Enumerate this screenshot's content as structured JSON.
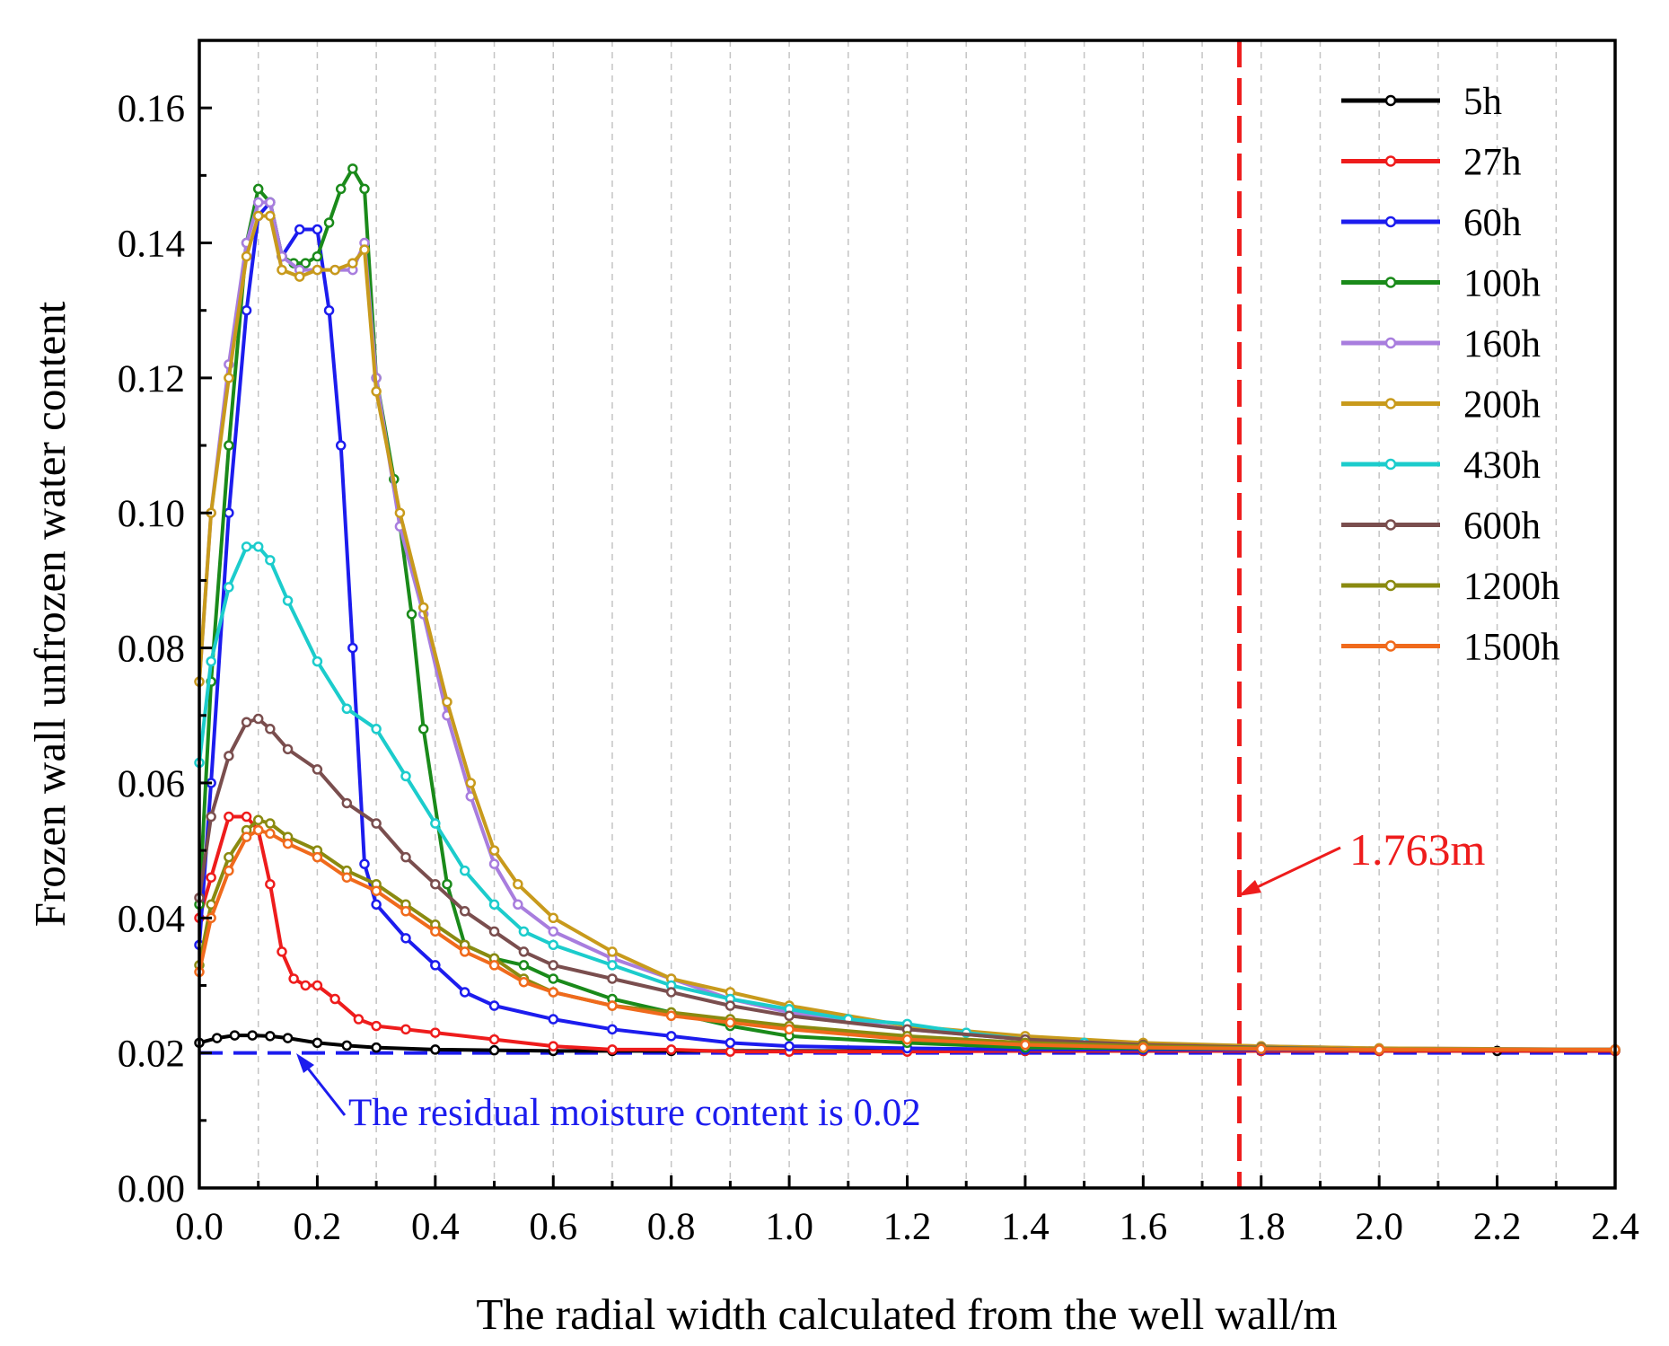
{
  "chart_data": {
    "type": "line",
    "xlabel": "The radial width calculated from the well wall/m",
    "ylabel": "Frozen wall unfrozen water content",
    "xlim": [
      0.0,
      2.4
    ],
    "ylim": [
      0.0,
      0.17
    ],
    "x_ticks": [
      "0.0",
      "0.2",
      "0.4",
      "0.6",
      "0.8",
      "1.0",
      "1.2",
      "1.4",
      "1.6",
      "1.8",
      "2.0",
      "2.2",
      "2.4"
    ],
    "y_ticks": [
      "0.00",
      "0.02",
      "0.04",
      "0.06",
      "0.08",
      "0.10",
      "0.12",
      "0.14",
      "0.16"
    ],
    "grid": "vertical dashed every 0.1",
    "legend_position": "top-right",
    "series": [
      {
        "name": "5h",
        "color": "#000000",
        "x": [
          0,
          0.03,
          0.06,
          0.09,
          0.12,
          0.15,
          0.2,
          0.25,
          0.3,
          0.4,
          0.5,
          0.6,
          0.7,
          0.8,
          1.0,
          1.2,
          1.4,
          1.6,
          1.8,
          2.0,
          2.2,
          2.4
        ],
        "y": [
          0.0215,
          0.0222,
          0.0226,
          0.0226,
          0.0225,
          0.0222,
          0.0215,
          0.0211,
          0.0208,
          0.0205,
          0.0204,
          0.0203,
          0.0203,
          0.0203,
          0.0203,
          0.0203,
          0.0203,
          0.0203,
          0.0203,
          0.0203,
          0.0203,
          0.0203
        ]
      },
      {
        "name": "27h",
        "color": "#ee1c1c",
        "x": [
          0,
          0.02,
          0.05,
          0.08,
          0.1,
          0.12,
          0.14,
          0.16,
          0.18,
          0.2,
          0.23,
          0.27,
          0.3,
          0.35,
          0.4,
          0.5,
          0.6,
          0.7,
          0.8,
          0.9,
          1.0,
          1.2,
          1.4,
          1.6,
          1.8,
          2.0,
          2.4
        ],
        "y": [
          0.04,
          0.046,
          0.055,
          0.055,
          0.053,
          0.045,
          0.035,
          0.031,
          0.03,
          0.03,
          0.028,
          0.025,
          0.024,
          0.0235,
          0.023,
          0.022,
          0.021,
          0.0205,
          0.0205,
          0.0202,
          0.0202,
          0.0202,
          0.0203,
          0.0203,
          0.0203,
          0.0203,
          0.0203
        ]
      },
      {
        "name": "60h",
        "color": "#1c1cee",
        "x": [
          0,
          0.02,
          0.05,
          0.08,
          0.1,
          0.12,
          0.14,
          0.17,
          0.2,
          0.22,
          0.24,
          0.26,
          0.28,
          0.3,
          0.35,
          0.4,
          0.45,
          0.5,
          0.6,
          0.7,
          0.8,
          0.9,
          1.0,
          1.2,
          1.4,
          1.6,
          1.8,
          2.0,
          2.4
        ],
        "y": [
          0.036,
          0.06,
          0.1,
          0.13,
          0.144,
          0.146,
          0.138,
          0.142,
          0.142,
          0.13,
          0.11,
          0.08,
          0.048,
          0.042,
          0.037,
          0.033,
          0.029,
          0.027,
          0.025,
          0.0235,
          0.0225,
          0.0215,
          0.021,
          0.0207,
          0.0205,
          0.0205,
          0.0205,
          0.0205,
          0.0205
        ]
      },
      {
        "name": "100h",
        "color": "#1a8a1a",
        "x": [
          0,
          0.02,
          0.05,
          0.08,
          0.1,
          0.12,
          0.14,
          0.16,
          0.18,
          0.2,
          0.22,
          0.24,
          0.26,
          0.28,
          0.3,
          0.33,
          0.36,
          0.38,
          0.42,
          0.45,
          0.5,
          0.55,
          0.6,
          0.7,
          0.8,
          0.9,
          1.0,
          1.2,
          1.4,
          1.6,
          1.8,
          2.0,
          2.4
        ],
        "y": [
          0.042,
          0.075,
          0.11,
          0.14,
          0.148,
          0.146,
          0.138,
          0.137,
          0.137,
          0.138,
          0.143,
          0.148,
          0.151,
          0.148,
          0.12,
          0.105,
          0.085,
          0.068,
          0.045,
          0.036,
          0.034,
          0.033,
          0.031,
          0.028,
          0.026,
          0.024,
          0.0225,
          0.0215,
          0.0208,
          0.0207,
          0.0206,
          0.0205,
          0.0205
        ]
      },
      {
        "name": "160h",
        "color": "#a87dde",
        "x": [
          0,
          0.02,
          0.05,
          0.08,
          0.1,
          0.12,
          0.14,
          0.17,
          0.2,
          0.23,
          0.26,
          0.28,
          0.3,
          0.34,
          0.38,
          0.42,
          0.46,
          0.5,
          0.54,
          0.6,
          0.7,
          0.8,
          0.9,
          1.0,
          1.2,
          1.4,
          1.6,
          1.8,
          2.0,
          2.4
        ],
        "y": [
          0.075,
          0.1,
          0.122,
          0.14,
          0.146,
          0.146,
          0.138,
          0.136,
          0.136,
          0.136,
          0.136,
          0.14,
          0.12,
          0.098,
          0.085,
          0.07,
          0.058,
          0.048,
          0.042,
          0.038,
          0.034,
          0.031,
          0.028,
          0.026,
          0.0235,
          0.022,
          0.0213,
          0.021,
          0.0207,
          0.0205
        ]
      },
      {
        "name": "200h",
        "color": "#c89a1c",
        "x": [
          0,
          0.02,
          0.05,
          0.08,
          0.1,
          0.12,
          0.14,
          0.17,
          0.2,
          0.23,
          0.26,
          0.28,
          0.3,
          0.34,
          0.38,
          0.42,
          0.46,
          0.5,
          0.54,
          0.6,
          0.7,
          0.8,
          0.9,
          1.0,
          1.2,
          1.4,
          1.6,
          1.8,
          2.0,
          2.4
        ],
        "y": [
          0.075,
          0.1,
          0.12,
          0.138,
          0.144,
          0.144,
          0.136,
          0.135,
          0.136,
          0.136,
          0.137,
          0.139,
          0.118,
          0.1,
          0.086,
          0.072,
          0.06,
          0.05,
          0.045,
          0.04,
          0.035,
          0.031,
          0.029,
          0.027,
          0.024,
          0.0225,
          0.0215,
          0.021,
          0.0207,
          0.0205
        ]
      },
      {
        "name": "430h",
        "color": "#1ccccc",
        "x": [
          0,
          0.02,
          0.05,
          0.08,
          0.1,
          0.12,
          0.15,
          0.2,
          0.25,
          0.3,
          0.35,
          0.4,
          0.45,
          0.5,
          0.55,
          0.6,
          0.7,
          0.8,
          0.9,
          1.0,
          1.1,
          1.2,
          1.3,
          1.4,
          1.5,
          1.6,
          1.8,
          2.0,
          2.4
        ],
        "y": [
          0.063,
          0.078,
          0.089,
          0.095,
          0.095,
          0.093,
          0.087,
          0.078,
          0.071,
          0.068,
          0.061,
          0.054,
          0.047,
          0.042,
          0.038,
          0.036,
          0.033,
          0.03,
          0.028,
          0.0265,
          0.025,
          0.0243,
          0.023,
          0.022,
          0.0215,
          0.021,
          0.0208,
          0.0205,
          0.0205
        ]
      },
      {
        "name": "600h",
        "color": "#7a4e4e",
        "x": [
          0,
          0.02,
          0.05,
          0.08,
          0.1,
          0.12,
          0.15,
          0.2,
          0.25,
          0.3,
          0.35,
          0.4,
          0.45,
          0.5,
          0.55,
          0.6,
          0.7,
          0.8,
          0.9,
          1.0,
          1.2,
          1.4,
          1.6,
          1.8,
          2.0,
          2.4
        ],
        "y": [
          0.043,
          0.055,
          0.064,
          0.069,
          0.0695,
          0.068,
          0.065,
          0.062,
          0.057,
          0.054,
          0.049,
          0.045,
          0.041,
          0.038,
          0.035,
          0.033,
          0.031,
          0.029,
          0.027,
          0.0255,
          0.0235,
          0.022,
          0.0212,
          0.0208,
          0.0205,
          0.0205
        ]
      },
      {
        "name": "1200h",
        "color": "#8a8a10",
        "x": [
          0,
          0.02,
          0.05,
          0.08,
          0.1,
          0.12,
          0.15,
          0.2,
          0.25,
          0.3,
          0.35,
          0.4,
          0.45,
          0.5,
          0.55,
          0.6,
          0.7,
          0.8,
          0.9,
          1.0,
          1.2,
          1.4,
          1.6,
          1.8,
          2.0,
          2.4
        ],
        "y": [
          0.033,
          0.042,
          0.049,
          0.053,
          0.0545,
          0.054,
          0.052,
          0.05,
          0.047,
          0.045,
          0.042,
          0.039,
          0.036,
          0.034,
          0.031,
          0.029,
          0.027,
          0.026,
          0.025,
          0.024,
          0.0225,
          0.0215,
          0.021,
          0.0207,
          0.0205,
          0.0205
        ]
      },
      {
        "name": "1500h",
        "color": "#f06a1c",
        "x": [
          0,
          0.02,
          0.05,
          0.08,
          0.1,
          0.12,
          0.15,
          0.2,
          0.25,
          0.3,
          0.35,
          0.4,
          0.45,
          0.5,
          0.55,
          0.6,
          0.7,
          0.8,
          0.9,
          1.0,
          1.2,
          1.4,
          1.6,
          1.8,
          2.0,
          2.4
        ],
        "y": [
          0.032,
          0.04,
          0.047,
          0.052,
          0.053,
          0.0525,
          0.051,
          0.049,
          0.046,
          0.044,
          0.041,
          0.038,
          0.035,
          0.033,
          0.0305,
          0.029,
          0.027,
          0.0255,
          0.0245,
          0.0235,
          0.022,
          0.0212,
          0.0208,
          0.0206,
          0.0205,
          0.0205
        ]
      }
    ],
    "reference_lines": {
      "vertical": {
        "x": 1.763,
        "color": "#ee1c1c",
        "label": "1.763m"
      },
      "horizontal": {
        "y": 0.02,
        "color": "#1c1cee",
        "label": "The residual moisture content is 0.02"
      }
    }
  }
}
